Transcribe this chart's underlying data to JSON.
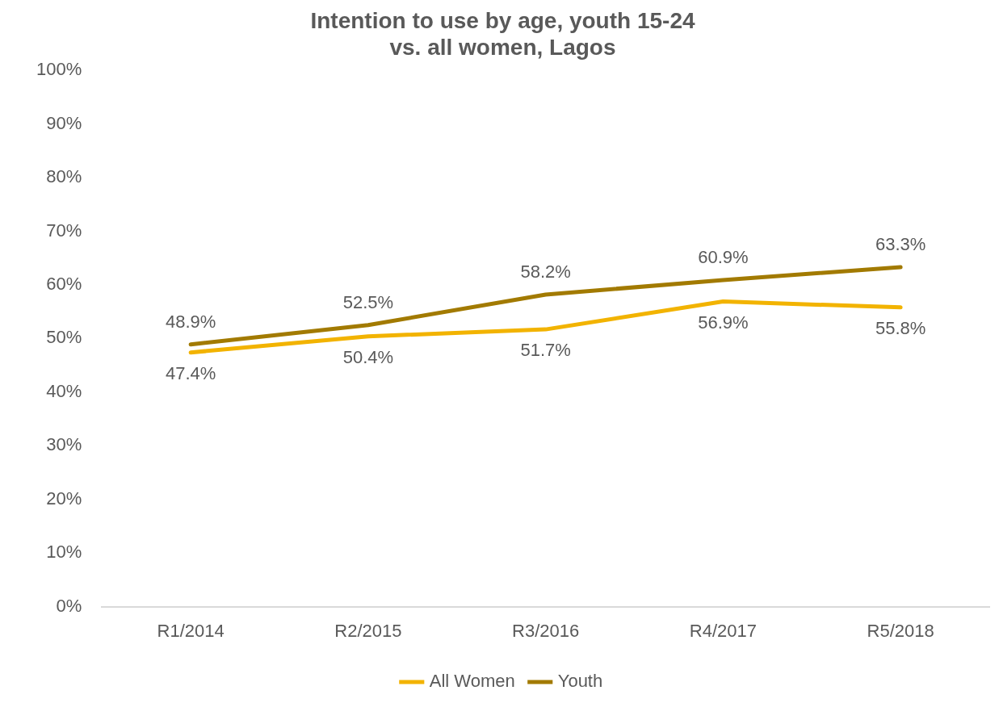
{
  "chart_data": {
    "type": "line",
    "title": "Intention to use by age, youth 15-24\nvs. all women, Lagos",
    "categories": [
      "R1/2014",
      "R2/2015",
      "R3/2016",
      "R4/2017",
      "R5/2018"
    ],
    "series": [
      {
        "name": "All Women",
        "color": "#f2b300",
        "values": [
          47.4,
          50.4,
          51.7,
          56.9,
          55.8
        ],
        "value_labels": [
          "47.4%",
          "50.4%",
          "51.7%",
          "56.9%",
          "55.8%"
        ]
      },
      {
        "name": "Youth",
        "color": "#a27a00",
        "values": [
          48.9,
          52.5,
          58.2,
          60.9,
          63.3
        ],
        "value_labels": [
          "48.9%",
          "52.5%",
          "58.2%",
          "60.9%",
          "63.3%"
        ]
      }
    ],
    "ylim": [
      0,
      100
    ],
    "yticks": [
      {
        "value": 0,
        "label": "0%"
      },
      {
        "value": 10,
        "label": "10%"
      },
      {
        "value": 20,
        "label": "20%"
      },
      {
        "value": 30,
        "label": "30%"
      },
      {
        "value": 40,
        "label": "40%"
      },
      {
        "value": 50,
        "label": "50%"
      },
      {
        "value": 60,
        "label": "60%"
      },
      {
        "value": 70,
        "label": "70%"
      },
      {
        "value": 80,
        "label": "80%"
      },
      {
        "value": 90,
        "label": "90%"
      },
      {
        "value": 100,
        "label": "100%"
      }
    ],
    "grid": false,
    "legend": "bottom",
    "marker": "none",
    "line_style": "solid"
  }
}
